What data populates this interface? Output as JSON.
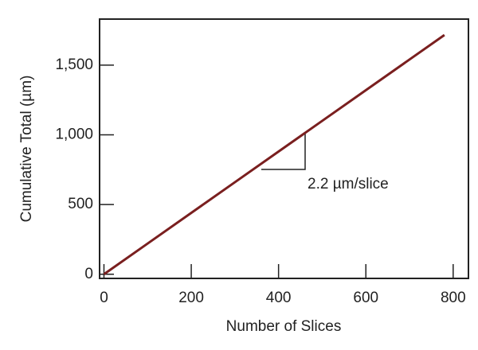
{
  "chart_data": {
    "type": "line",
    "x_label": "Number of Slices",
    "y_label": "Cumulative Total (µm)",
    "annotation": "2.2 µm/slice",
    "x": [
      0,
      100,
      200,
      300,
      400,
      500,
      600,
      700,
      780
    ],
    "series": [
      {
        "name": "Cumulative total",
        "color": "#7a1f1f",
        "values": [
          0,
          220,
          440,
          660,
          880,
          1100,
          1320,
          1540,
          1716
        ]
      }
    ],
    "xlim": [
      -10,
      835
    ],
    "ylim": [
      -30,
      1830
    ],
    "xticks": [
      0,
      200,
      400,
      600,
      800
    ],
    "yticks": [
      0,
      500,
      {
        "value": 1000,
        "label": "1,000"
      },
      {
        "value": 1500,
        "label": "1,500"
      }
    ],
    "grid": false
  }
}
